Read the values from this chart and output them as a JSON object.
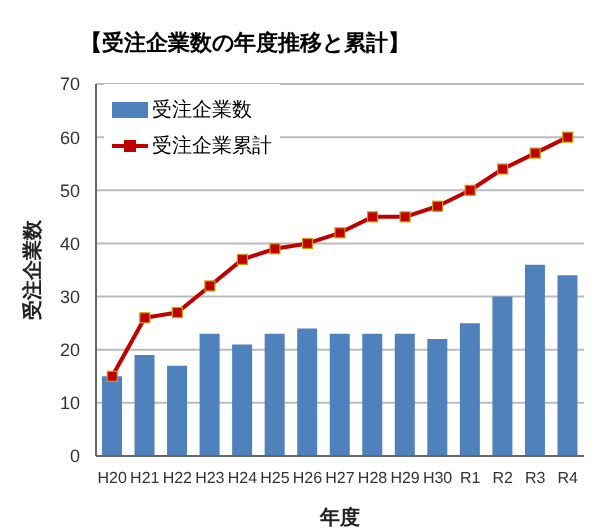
{
  "chart_data": {
    "type": "bar",
    "title": "【受注企業数の年度推移と累計】",
    "xlabel": "年度",
    "ylabel": "受注企業数",
    "categories": [
      "H20",
      "H21",
      "H22",
      "H23",
      "H24",
      "H25",
      "H26",
      "H27",
      "H28",
      "H29",
      "H30",
      "R1",
      "R2",
      "R3",
      "R4"
    ],
    "series": [
      {
        "name": "受注企業数",
        "color": "#4f81bd",
        "values": [
          15,
          19,
          17,
          23,
          21,
          23,
          24,
          23,
          23,
          23,
          22,
          25,
          30,
          36,
          34
        ]
      },
      {
        "name": "受注企業累計",
        "type": "line",
        "color": "#c00000",
        "marker": "square",
        "values": [
          15,
          26,
          27,
          32,
          37,
          39,
          40,
          42,
          45,
          45,
          47,
          50,
          54,
          57,
          60
        ]
      }
    ],
    "ylim": [
      0,
      70
    ],
    "yticks": [
      0,
      10,
      20,
      30,
      40,
      50,
      60,
      70
    ],
    "grid": "y",
    "legend": "top left"
  }
}
